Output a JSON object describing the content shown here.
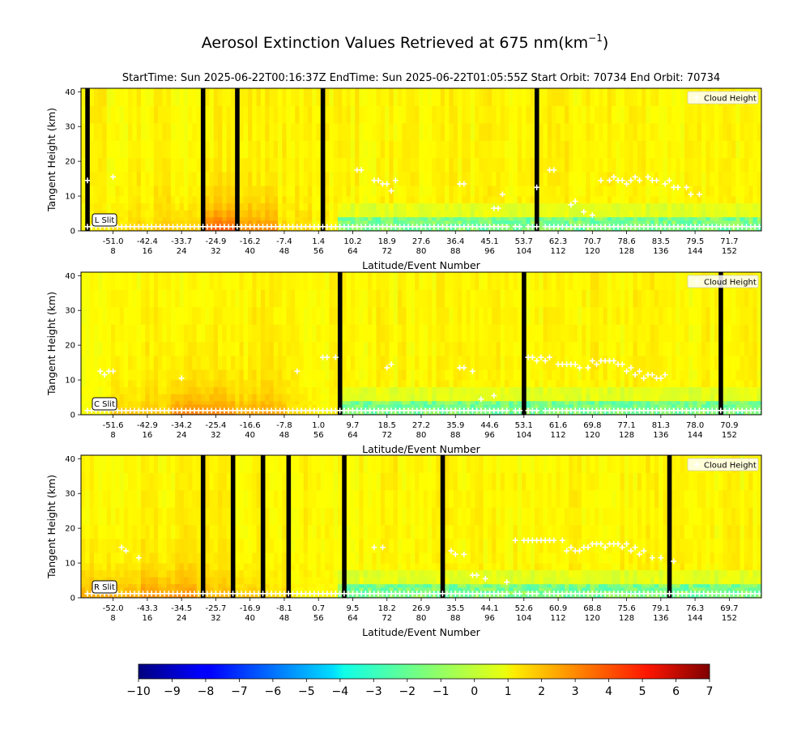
{
  "title": "Aerosol Extinction Values Retrieved at 675 nm(km",
  "title_sup": "−1",
  "title_close": ")",
  "subtitle": "StartTime: Sun 2025-06-22T00:16:37Z  EndTime: Sun 2025-06-22T01:05:55Z  Start Orbit: 70734 End Orbit: 70734",
  "chart_data": [
    {
      "type": "heatmap",
      "slit_label": "L Slit",
      "legend": "Cloud Height",
      "ylabel": "Tangent Height (km)",
      "xlabel": "Latitude/Event Number",
      "ylim": [
        0,
        41
      ],
      "yticks": [
        "0",
        "10",
        "20",
        "30",
        "40"
      ],
      "event_range": [
        1,
        159
      ],
      "xtick_events": [
        8,
        16,
        24,
        32,
        40,
        48,
        56,
        64,
        72,
        80,
        88,
        96,
        104,
        112,
        120,
        128,
        136,
        144,
        152
      ],
      "xtick_lat": [
        "-51.0",
        "-42.4",
        "-33.7",
        "-24.9",
        "-16.2",
        "-7.4",
        "1.4",
        "10.2",
        "18.9",
        "27.6",
        "36.4",
        "45.1",
        "53.7",
        "62.3",
        "70.7",
        "78.6",
        "83.5",
        "79.5",
        "71.7"
      ],
      "gap_events": [
        2,
        29,
        37,
        57,
        107
      ],
      "enhanced_events": [
        [
          30,
          37,
          2.8
        ],
        [
          38,
          46,
          1.8
        ],
        [
          20,
          28,
          0.9
        ],
        [
          8,
          19,
          0.6
        ],
        [
          47,
          54,
          0.5
        ]
      ],
      "cloud_heights": [
        [
          2,
          14.5
        ],
        [
          8,
          15.5
        ],
        [
          65,
          17.5
        ],
        [
          66,
          17.5
        ],
        [
          69,
          14.5
        ],
        [
          70,
          14.5
        ],
        [
          71,
          13.5
        ],
        [
          72,
          13.5
        ],
        [
          73,
          11.5
        ],
        [
          74,
          14.5
        ],
        [
          89,
          13.5
        ],
        [
          90,
          13.5
        ],
        [
          97,
          6.5
        ],
        [
          98,
          6.5
        ],
        [
          99,
          10.5
        ],
        [
          107,
          12.5
        ],
        [
          110,
          17.5
        ],
        [
          111,
          17.5
        ],
        [
          115,
          7.5
        ],
        [
          116,
          8.5
        ],
        [
          118,
          5.5
        ],
        [
          120,
          4.5
        ],
        [
          122,
          14.5
        ],
        [
          124,
          14.5
        ],
        [
          125,
          15.5
        ],
        [
          126,
          14.5
        ],
        [
          127,
          14.5
        ],
        [
          128,
          13.5
        ],
        [
          129,
          14.5
        ],
        [
          130,
          15.5
        ],
        [
          131,
          14.5
        ],
        [
          133,
          15.5
        ],
        [
          134,
          14.5
        ],
        [
          135,
          14.5
        ],
        [
          137,
          13.5
        ],
        [
          138,
          14.5
        ],
        [
          139,
          12.5
        ],
        [
          140,
          12.5
        ],
        [
          142,
          12.5
        ],
        [
          143,
          10.5
        ],
        [
          145,
          10.5
        ]
      ]
    },
    {
      "type": "heatmap",
      "slit_label": "C Slit",
      "legend": "Cloud Height",
      "ylabel": "Tangent Height (km)",
      "xlabel": "Latitude/Event Number",
      "ylim": [
        0,
        41
      ],
      "yticks": [
        "0",
        "10",
        "20",
        "30",
        "40"
      ],
      "event_range": [
        1,
        159
      ],
      "xtick_events": [
        8,
        16,
        24,
        32,
        40,
        48,
        56,
        64,
        72,
        80,
        88,
        96,
        104,
        112,
        120,
        128,
        136,
        144,
        152
      ],
      "xtick_lat": [
        "-51.6",
        "-42.9",
        "-34.2",
        "-25.4",
        "-16.6",
        "-7.8",
        "1.0",
        "9.7",
        "18.5",
        "27.2",
        "35.9",
        "44.6",
        "53.1",
        "61.6",
        "69.8",
        "77.1",
        "81.3",
        "78.0",
        "70.9"
      ],
      "gap_events": [
        61,
        104,
        150
      ],
      "enhanced_events": [
        [
          22,
          36,
          2.0
        ],
        [
          37,
          48,
          1.3
        ],
        [
          8,
          21,
          0.8
        ],
        [
          49,
          55,
          0.4
        ]
      ],
      "cloud_heights": [
        [
          5,
          12.5
        ],
        [
          6,
          11.5
        ],
        [
          7,
          12.5
        ],
        [
          8,
          12.5
        ],
        [
          24,
          10.5
        ],
        [
          51,
          12.5
        ],
        [
          57,
          16.5
        ],
        [
          58,
          16.5
        ],
        [
          60,
          16.5
        ],
        [
          72,
          13.5
        ],
        [
          73,
          14.5
        ],
        [
          89,
          13.5
        ],
        [
          90,
          13.5
        ],
        [
          92,
          12.5
        ],
        [
          94,
          4.5
        ],
        [
          97,
          5.5
        ],
        [
          105,
          16.5
        ],
        [
          106,
          16.5
        ],
        [
          107,
          15.5
        ],
        [
          108,
          16.5
        ],
        [
          109,
          15.5
        ],
        [
          110,
          16.5
        ],
        [
          112,
          14.5
        ],
        [
          113,
          14.5
        ],
        [
          114,
          14.5
        ],
        [
          115,
          14.5
        ],
        [
          116,
          14.5
        ],
        [
          117,
          13.5
        ],
        [
          119,
          13.5
        ],
        [
          120,
          15.5
        ],
        [
          121,
          14.5
        ],
        [
          122,
          15.5
        ],
        [
          123,
          15.5
        ],
        [
          124,
          15.5
        ],
        [
          125,
          15.5
        ],
        [
          126,
          14.5
        ],
        [
          127,
          14.5
        ],
        [
          128,
          12.5
        ],
        [
          129,
          13.5
        ],
        [
          130,
          11.5
        ],
        [
          131,
          12.5
        ],
        [
          132,
          10.5
        ],
        [
          133,
          11.5
        ],
        [
          134,
          11.5
        ],
        [
          135,
          10.5
        ],
        [
          136,
          10.5
        ],
        [
          137,
          11.5
        ]
      ]
    },
    {
      "type": "heatmap",
      "slit_label": "R Slit",
      "legend": "Cloud Height",
      "ylabel": "Tangent Height (km)",
      "xlabel": "Latitude/Event Number",
      "ylim": [
        0,
        41
      ],
      "yticks": [
        "0",
        "10",
        "20",
        "30",
        "40"
      ],
      "event_range": [
        1,
        159
      ],
      "xtick_events": [
        8,
        16,
        24,
        32,
        40,
        48,
        56,
        64,
        72,
        80,
        88,
        96,
        104,
        112,
        120,
        128,
        136,
        144,
        152
      ],
      "xtick_lat": [
        "-52.0",
        "-43.3",
        "-34.5",
        "-25.7",
        "-16.9",
        "-8.1",
        "0.7",
        "9.5",
        "18.2",
        "26.9",
        "35.5",
        "44.1",
        "52.6",
        "60.9",
        "68.8",
        "75.6",
        "79.1",
        "76.3",
        "69.7"
      ],
      "gap_events": [
        29,
        36,
        43,
        49,
        62,
        85,
        138
      ],
      "enhanced_events": [
        [
          1,
          14,
          1.4
        ],
        [
          15,
          27,
          1.8
        ],
        [
          28,
          41,
          1.0
        ],
        [
          42,
          50,
          0.5
        ]
      ],
      "cloud_heights": [
        [
          10,
          14.5
        ],
        [
          11,
          13.5
        ],
        [
          14,
          11.5
        ],
        [
          69,
          14.5
        ],
        [
          71,
          14.5
        ],
        [
          87,
          13.5
        ],
        [
          88,
          12.5
        ],
        [
          90,
          12.5
        ],
        [
          92,
          6.5
        ],
        [
          93,
          6.5
        ],
        [
          95,
          5.5
        ],
        [
          100,
          4.5
        ],
        [
          102,
          16.5
        ],
        [
          104,
          16.5
        ],
        [
          105,
          16.5
        ],
        [
          106,
          16.5
        ],
        [
          107,
          16.5
        ],
        [
          108,
          16.5
        ],
        [
          109,
          16.5
        ],
        [
          110,
          16.5
        ],
        [
          111,
          16.5
        ],
        [
          113,
          16.5
        ],
        [
          114,
          13.5
        ],
        [
          115,
          14.5
        ],
        [
          116,
          13.5
        ],
        [
          117,
          13.5
        ],
        [
          118,
          14.5
        ],
        [
          119,
          14.5
        ],
        [
          120,
          15.5
        ],
        [
          121,
          15.5
        ],
        [
          122,
          15.5
        ],
        [
          123,
          14.5
        ],
        [
          124,
          15.5
        ],
        [
          125,
          15.5
        ],
        [
          126,
          15.5
        ],
        [
          127,
          14.5
        ],
        [
          128,
          15.5
        ],
        [
          129,
          13.5
        ],
        [
          130,
          14.5
        ],
        [
          131,
          12.5
        ],
        [
          132,
          13.5
        ],
        [
          134,
          11.5
        ],
        [
          136,
          11.5
        ],
        [
          139,
          10.5
        ]
      ]
    }
  ],
  "colorbar": {
    "range": [
      -10,
      7
    ],
    "ticks": [
      "−10",
      "−9",
      "−8",
      "−7",
      "−6",
      "−5",
      "−4",
      "−3",
      "−2",
      "−1",
      "0",
      "1",
      "2",
      "3",
      "4",
      "5",
      "6",
      "7"
    ],
    "colormap": "jet"
  }
}
